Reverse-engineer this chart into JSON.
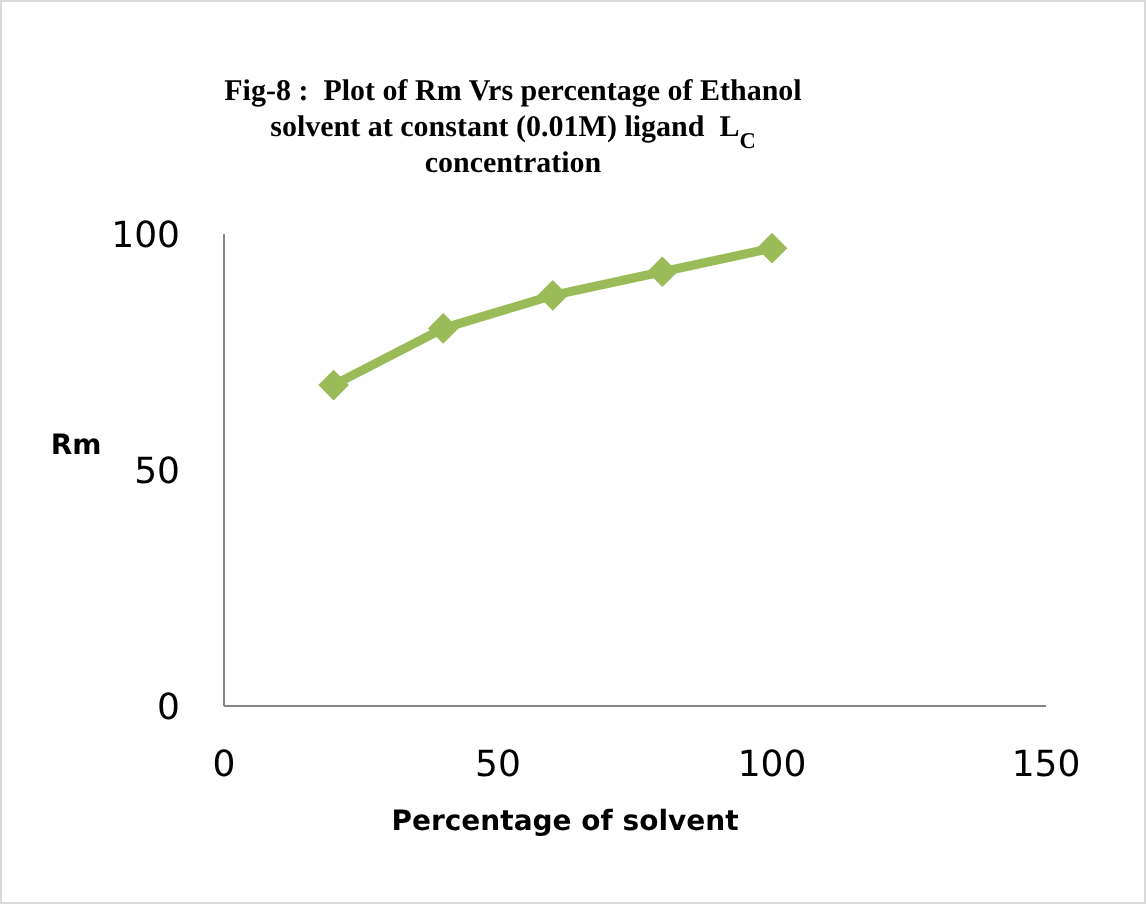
{
  "chart_data": {
    "type": "line",
    "title": "Fig-8 :  Plot of Rm Vrs percentage of Ethanol solvent at constant (0.01M) ligand  L$_{C}$ concentration",
    "xlabel": "Percentage of solvent",
    "ylabel": "Rm",
    "x": [
      20,
      40,
      60,
      80,
      100
    ],
    "series": [
      {
        "color": "#9bbb59",
        "values": [
          68,
          80,
          87,
          92,
          97
        ]
      }
    ],
    "xlim": [
      0,
      150
    ],
    "xticks": [
      0,
      50,
      100,
      150
    ],
    "ylim": [
      0,
      100
    ],
    "yticks": [
      0,
      50,
      100
    ],
    "grid": false,
    "marker": "diamond",
    "line_style": "solid"
  }
}
